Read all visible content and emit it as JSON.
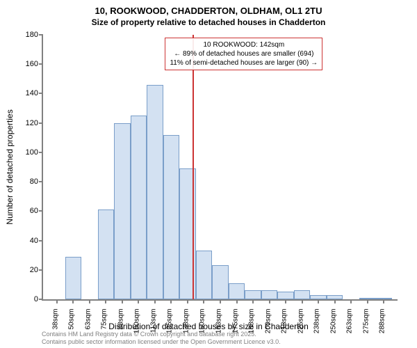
{
  "title": "10, ROOKWOOD, CHADDERTON, OLDHAM, OL1 2TU",
  "subtitle": "Size of property relative to detached houses in Chadderton",
  "ylabel": "Number of detached properties",
  "xlabel": "Distribution of detached houses by size in Chadderton",
  "footer_line1": "Contains HM Land Registry data © Crown copyright and database right 2025.",
  "footer_line2": "Contains public sector information licensed under the Open Government Licence v3.0.",
  "annotation": {
    "line1": "10 ROOKWOOD: 142sqm",
    "line2": "← 89% of detached houses are smaller (694)",
    "line3": "11% of semi-detached houses are larger (90) →"
  },
  "chart": {
    "type": "histogram",
    "bar_fill": "#d3e1f2",
    "bar_border": "#7a9ec9",
    "axis_color": "#808080",
    "ref_line_color": "#cc3333",
    "ref_line_x": 142,
    "background": "#ffffff",
    "ylim": [
      0,
      180
    ],
    "ytick_step": 20,
    "x_categories": [
      "38sqm",
      "50sqm",
      "63sqm",
      "75sqm",
      "88sqm",
      "100sqm",
      "113sqm",
      "125sqm",
      "138sqm",
      "150sqm",
      "163sqm",
      "175sqm",
      "188sqm",
      "200sqm",
      "213sqm",
      "225sqm",
      "238sqm",
      "250sqm",
      "263sqm",
      "275sqm",
      "288sqm"
    ],
    "values": [
      0,
      29,
      0,
      61,
      120,
      125,
      146,
      112,
      89,
      33,
      23,
      11,
      6,
      6,
      5,
      6,
      3,
      3,
      0,
      1,
      1
    ],
    "title_fontsize": 13,
    "subtitle_fontsize": 12,
    "label_fontsize": 12,
    "tick_fontsize": 11,
    "annotation_fontsize": 10,
    "footer_fontsize": 9,
    "footer_color": "#808080"
  }
}
